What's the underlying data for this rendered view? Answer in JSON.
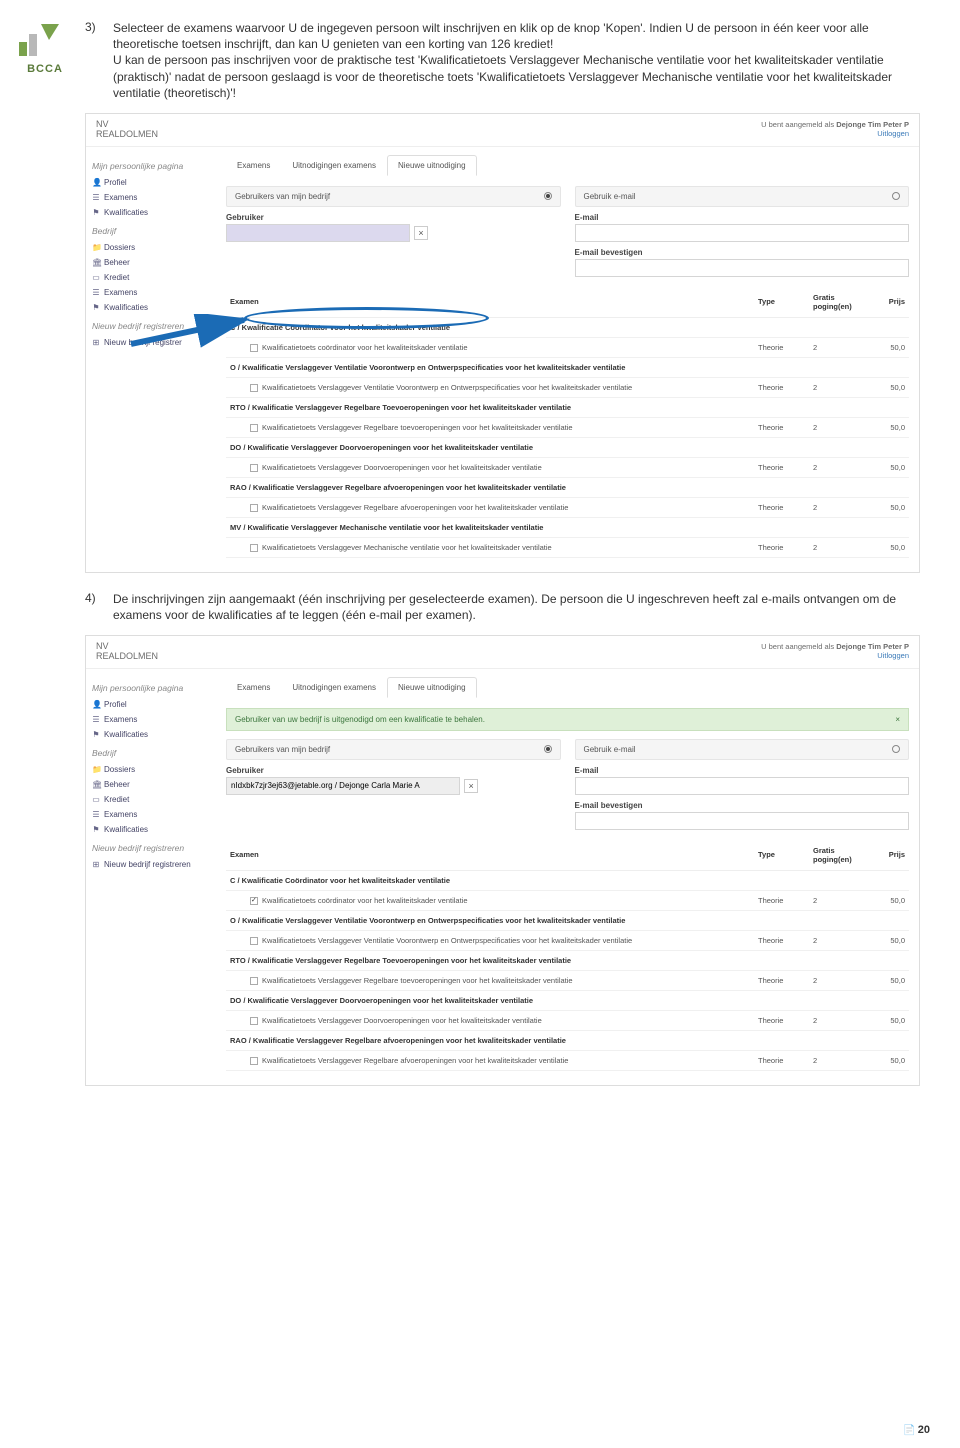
{
  "doc": {
    "logo_text": "BCCA",
    "logo_color": "#6a8a3a",
    "step3_num": "3)",
    "step3_text": "Selecteer de examens waarvoor U de ingegeven persoon wilt inschrijven en klik op de knop 'Kopen'. Indien U de persoon in één keer voor alle theoretische toetsen inschrijft, dan kan U genieten van een korting van 126 krediet!\nU kan de persoon pas inschrijven voor de praktische test 'Kwalificatietoets Verslaggever Mechanische ventilatie voor het kwaliteitskader ventilatie (praktisch)' nadat de persoon geslaagd is voor de theoretische toets 'Kwalificatietoets Verslaggever Mechanische ventilatie voor het kwaliteitskader ventilatie (theoretisch)'!",
    "step4_num": "4)",
    "step4_text": "De inschrijvingen zijn aangemaakt (één inschrijving per geselecteerde examen). De persoon die U ingeschreven heeft zal e-mails ontvangen om de examens voor de kwalificaties af te leggen (één e-mail per examen).",
    "page_number": "20"
  },
  "app": {
    "company_line1": "NV",
    "company_line2": "REALDOLMEN",
    "user_prefix": "U bent aangemeld als",
    "user_name": "Dejonge Tim Peter P",
    "logout": "Uitloggen",
    "sidebar": {
      "sectionA": "Mijn persoonlijke pagina",
      "itemA1": "Profiel",
      "itemA2": "Examens",
      "itemA3": "Kwalificaties",
      "sectionB": "Bedrijf",
      "itemB1": "Dossiers",
      "itemB2": "Beheer",
      "itemB3": "Krediet",
      "itemB4": "Examens",
      "itemB5": "Kwalificaties",
      "sectionC": "Nieuw bedrijf registreren",
      "itemC1": "Nieuw bedrijf registreren",
      "itemC1_short": "Nieuw bedrijf registrer"
    },
    "tabs": {
      "t1": "Examens",
      "t2": "Uitnodigingen examens",
      "t3": "Nieuwe uitnodiging"
    },
    "panels": {
      "leftTitle": "Gebruikers van mijn bedrijf",
      "rightTitle": "Gebruik e-mail",
      "gebruiker": "Gebruiker",
      "email": "E-mail",
      "email_confirm": "E-mail bevestigen"
    },
    "success_msg": "Gebruiker van uw bedrijf is uitgenodigd om een kwalificatie te behalen.",
    "gebruiker_value_2": "nIdxbk7zjr3ej63@jetable.org / Dejonge Carla Marie A",
    "table": {
      "col_examen": "Examen",
      "col_type": "Type",
      "col_gratis": "Gratis poging(en)",
      "col_prijs": "Prijs",
      "groups": [
        {
          "g": "C / Kwalificatie Coördinator voor het kwaliteitskader ventilatie",
          "r": "Kwalificatietoets coördinator voor het kwaliteitskader ventilatie",
          "type": "Theorie",
          "pog": "2",
          "prijs": "50,0"
        },
        {
          "g": "O / Kwalificatie Verslaggever Ventilatie Voorontwerp en Ontwerpspecificaties voor het kwaliteitskader ventilatie",
          "r": "Kwalificatietoets Verslaggever Ventilatie Voorontwerp en Ontwerpspecificaties voor het kwaliteitskader ventilatie",
          "type": "Theorie",
          "pog": "2",
          "prijs": "50,0"
        },
        {
          "g": "RTO / Kwalificatie Verslaggever Regelbare Toevoeropeningen voor het kwaliteitskader ventilatie",
          "r": "Kwalificatietoets Verslaggever Regelbare toevoeropeningen voor het kwaliteitskader ventilatie",
          "type": "Theorie",
          "pog": "2",
          "prijs": "50,0"
        },
        {
          "g": "DO / Kwalificatie Verslaggever Doorvoeropeningen voor het kwaliteitskader ventilatie",
          "r": "Kwalificatietoets Verslaggever Doorvoeropeningen voor het kwaliteitskader ventilatie",
          "type": "Theorie",
          "pog": "2",
          "prijs": "50,0"
        },
        {
          "g": "RAO / Kwalificatie Verslaggever Regelbare afvoeropeningen voor het kwaliteitskader ventilatie",
          "r": "Kwalificatietoets Verslaggever Regelbare afvoeropeningen voor het kwaliteitskader ventilatie",
          "type": "Theorie",
          "pog": "2",
          "prijs": "50,0"
        },
        {
          "g": "MV / Kwalificatie Verslaggever Mechanische ventilatie voor het kwaliteitskader ventilatie",
          "r": "Kwalificatietoets Verslaggever Mechanische ventilatie voor het kwaliteitskader ventilatie",
          "type": "Theorie",
          "pog": "2",
          "prijs": "50,0"
        }
      ]
    }
  },
  "style": {
    "oval_color": "#1b6bb5",
    "arrow_color": "#1b6bb5"
  }
}
